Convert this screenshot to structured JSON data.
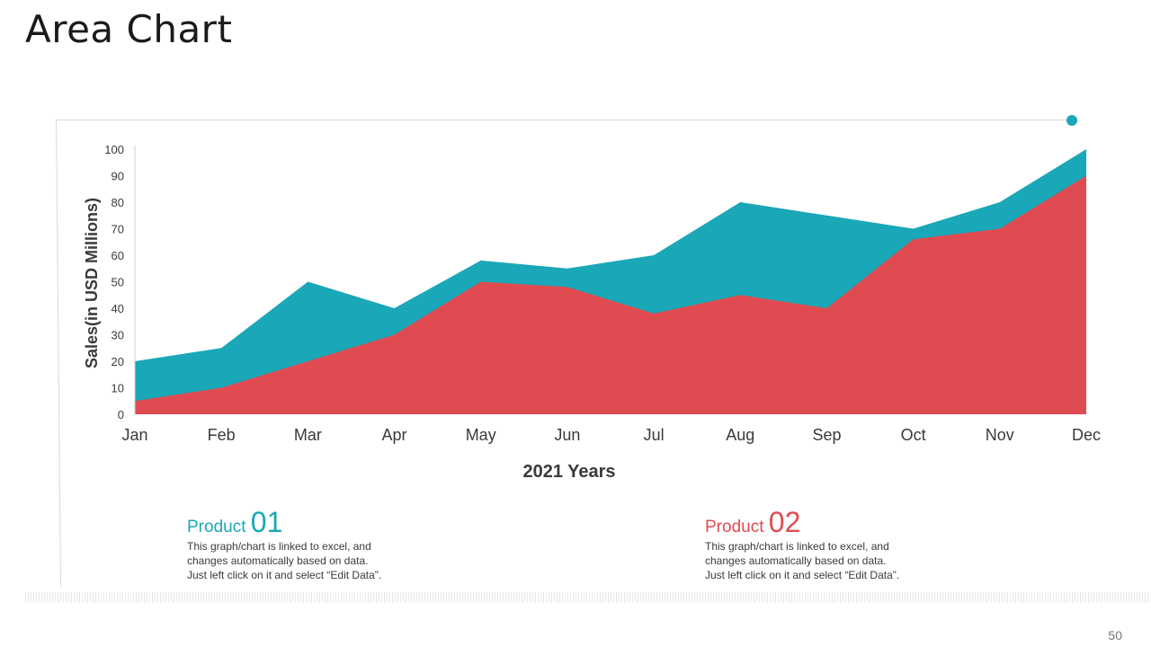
{
  "slide": {
    "title": "Area Chart",
    "page_number": "50"
  },
  "colors": {
    "product_01": "#1aa7b7",
    "product_02": "#e04b51",
    "accent_dot": "#1aa7b7"
  },
  "chart_data": {
    "type": "area",
    "xlabel": "2021 Years",
    "ylabel": "Sales(in USD Millions)",
    "categories": [
      "Jan",
      "Feb",
      "Mar",
      "Apr",
      "May",
      "Jun",
      "Jul",
      "Aug",
      "Sep",
      "Oct",
      "Nov",
      "Dec"
    ],
    "ylim": [
      0,
      100
    ],
    "yticks": [
      0,
      10,
      20,
      30,
      40,
      50,
      60,
      70,
      80,
      90,
      100
    ],
    "grid": false,
    "legend": "none",
    "series": [
      {
        "color": "#1aa7b7",
        "values": [
          20,
          25,
          50,
          40,
          58,
          55,
          60,
          80,
          75,
          70,
          80,
          100
        ]
      },
      {
        "color": "#e04b51",
        "values": [
          5,
          10,
          20,
          30,
          50,
          48,
          38,
          45,
          40,
          66,
          70,
          90
        ]
      }
    ]
  },
  "products": [
    {
      "label": "Product",
      "number": "01",
      "description": [
        "This graph/chart is linked to excel, and",
        "changes automatically based on data.",
        "Just left click on it and select “Edit Data”."
      ]
    },
    {
      "label": "Product",
      "number": "02",
      "description": [
        "This graph/chart is linked to excel, and",
        "changes automatically based on data.",
        "Just left click on it and select “Edit Data”."
      ]
    }
  ]
}
